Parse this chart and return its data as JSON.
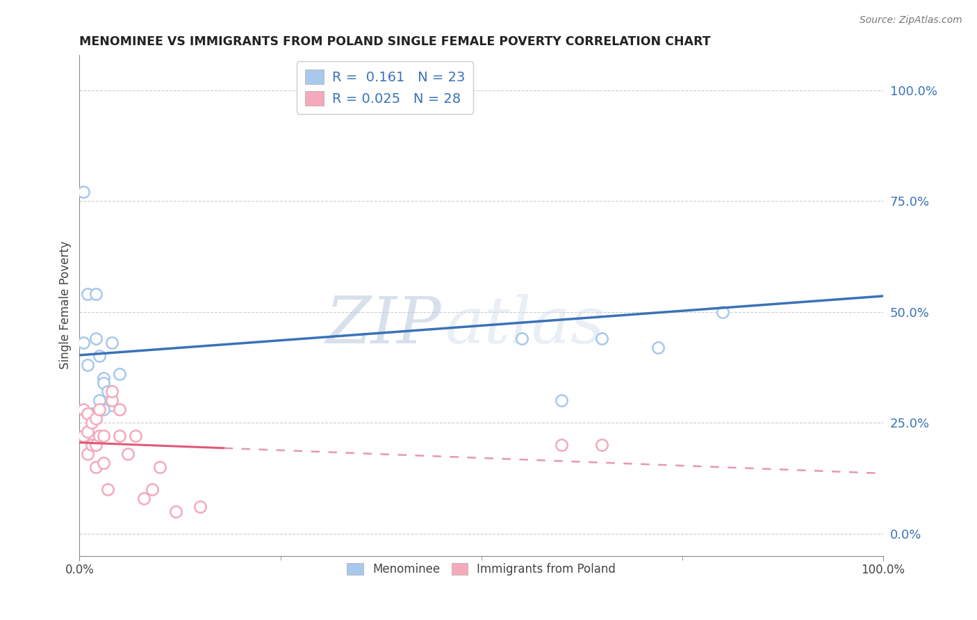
{
  "title": "MENOMINEE VS IMMIGRANTS FROM POLAND SINGLE FEMALE POVERTY CORRELATION CHART",
  "source": "Source: ZipAtlas.com",
  "ylabel": "Single Female Poverty",
  "xlim": [
    0,
    1
  ],
  "ylim": [
    -0.05,
    1.08
  ],
  "yticks": [
    0,
    0.25,
    0.5,
    0.75,
    1.0
  ],
  "ytick_labels": [
    "0.0%",
    "25.0%",
    "50.0%",
    "75.0%",
    "100.0%"
  ],
  "xtick_labels": [
    "0.0%",
    "100.0%"
  ],
  "legend_R_blue": "0.161",
  "legend_N_blue": "23",
  "legend_R_pink": "0.025",
  "legend_N_pink": "28",
  "blue_scatter_x": [
    0.005,
    0.01,
    0.02,
    0.02,
    0.025,
    0.03,
    0.03,
    0.035,
    0.04,
    0.05,
    0.005,
    0.01,
    0.015,
    0.02,
    0.025,
    0.03,
    0.04,
    0.55,
    0.6,
    0.65,
    0.72,
    0.8,
    0.45
  ],
  "blue_scatter_y": [
    0.77,
    0.54,
    0.54,
    0.44,
    0.4,
    0.35,
    0.34,
    0.32,
    0.29,
    0.36,
    0.43,
    0.38,
    0.27,
    0.27,
    0.3,
    0.28,
    0.43,
    0.44,
    0.3,
    0.44,
    0.42,
    0.5,
    1.0
  ],
  "pink_scatter_x": [
    0.005,
    0.005,
    0.01,
    0.01,
    0.01,
    0.015,
    0.015,
    0.02,
    0.02,
    0.02,
    0.025,
    0.025,
    0.03,
    0.03,
    0.035,
    0.04,
    0.04,
    0.05,
    0.05,
    0.06,
    0.07,
    0.08,
    0.09,
    0.1,
    0.12,
    0.15,
    0.6,
    0.65
  ],
  "pink_scatter_y": [
    0.28,
    0.22,
    0.27,
    0.23,
    0.18,
    0.25,
    0.2,
    0.26,
    0.2,
    0.15,
    0.28,
    0.22,
    0.22,
    0.16,
    0.1,
    0.3,
    0.32,
    0.28,
    0.22,
    0.18,
    0.22,
    0.08,
    0.1,
    0.15,
    0.05,
    0.06,
    0.2,
    0.2
  ],
  "blue_color": "#A8C8EC",
  "pink_color": "#F4AABA",
  "blue_line_color": "#3A72B8",
  "pink_solid_color": "#E05878",
  "pink_dashed_color": "#E898AC",
  "watermark_zip": "ZIP",
  "watermark_atlas": "atlas",
  "background_color": "#FFFFFF",
  "grid_color": "#CCCCCC"
}
